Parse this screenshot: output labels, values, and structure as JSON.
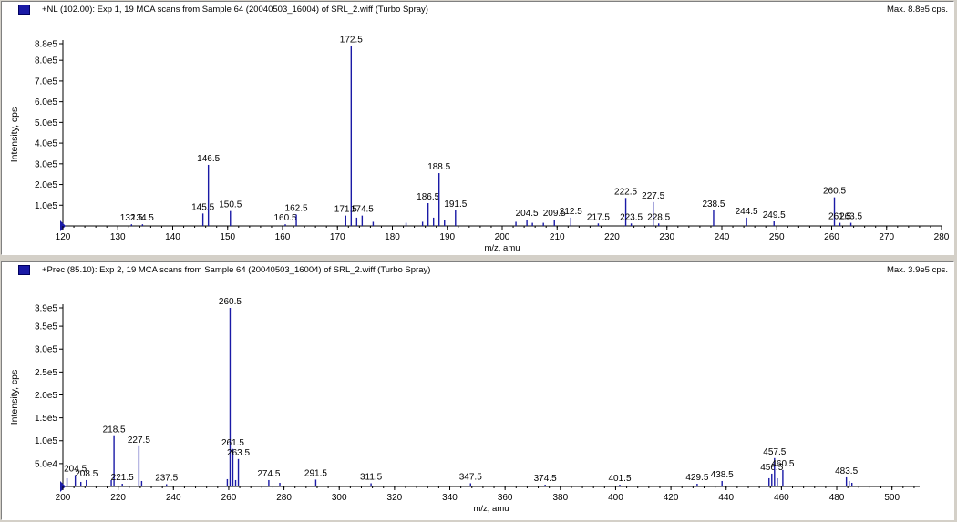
{
  "panels": [
    {
      "title": "+NL (102.00): Exp 1, 19 MCA scans from Sample 64 (20040503_16004) of SRL_2.wiff (Turbo Spray)",
      "max_label": "Max. 8.8e5 cps."
    },
    {
      "title": "+Prec (85.10): Exp 2, 19 MCA scans from Sample 64 (20040503_16004) of SRL_2.wiff (Turbo Spray)",
      "max_label": "Max. 3.9e5 cps."
    }
  ],
  "chart_data": [
    {
      "type": "bar",
      "xlabel": "m/z, amu",
      "ylabel": "Intensity, cps",
      "xlim": [
        120,
        280
      ],
      "ylim": [
        0,
        880000
      ],
      "line_color": "#1a1aa6",
      "x_ticks": [
        {
          "value": 120,
          "label": "120"
        },
        {
          "value": 130,
          "label": "130"
        },
        {
          "value": 140,
          "label": "140"
        },
        {
          "value": 150,
          "label": "150"
        },
        {
          "value": 160,
          "label": "160"
        },
        {
          "value": 170,
          "label": "170"
        },
        {
          "value": 180,
          "label": "180"
        },
        {
          "value": 190,
          "label": "190"
        },
        {
          "value": 200,
          "label": "200"
        },
        {
          "value": 210,
          "label": "210"
        },
        {
          "value": 220,
          "label": "220"
        },
        {
          "value": 230,
          "label": "230"
        },
        {
          "value": 240,
          "label": "240"
        },
        {
          "value": 250,
          "label": "250"
        },
        {
          "value": 260,
          "label": "260"
        },
        {
          "value": 270,
          "label": "270"
        },
        {
          "value": 280,
          "label": "280"
        }
      ],
      "y_ticks": [
        {
          "value": 100000,
          "label": "1.0e5"
        },
        {
          "value": 200000,
          "label": "2.0e5"
        },
        {
          "value": 300000,
          "label": "3.0e5"
        },
        {
          "value": 400000,
          "label": "4.0e5"
        },
        {
          "value": 500000,
          "label": "5.0e5"
        },
        {
          "value": 600000,
          "label": "6.0e5"
        },
        {
          "value": 700000,
          "label": "7.0e5"
        },
        {
          "value": 800000,
          "label": "8.0e5"
        },
        {
          "value": 880000,
          "label": "8.8e5"
        }
      ],
      "peaks": [
        {
          "x": 132.5,
          "y": 8000,
          "label": "132.5"
        },
        {
          "x": 134.5,
          "y": 8000,
          "label": "134.5"
        },
        {
          "x": 145.5,
          "y": 60000,
          "label": "145.5"
        },
        {
          "x": 146.5,
          "y": 295000,
          "label": "146.5"
        },
        {
          "x": 150.5,
          "y": 72000,
          "label": "150.5"
        },
        {
          "x": 160.5,
          "y": 8000,
          "label": "160.5"
        },
        {
          "x": 162.5,
          "y": 55000,
          "label": "162.5"
        },
        {
          "x": 171.5,
          "y": 50000,
          "label": "171.5"
        },
        {
          "x": 172.5,
          "y": 870000,
          "label": "172.5"
        },
        {
          "x": 173.5,
          "y": 40000,
          "label": ""
        },
        {
          "x": 174.5,
          "y": 50000,
          "label": "174.5"
        },
        {
          "x": 176.5,
          "y": 20000,
          "label": ""
        },
        {
          "x": 182.5,
          "y": 15000,
          "label": ""
        },
        {
          "x": 185.5,
          "y": 20000,
          "label": ""
        },
        {
          "x": 186.5,
          "y": 110000,
          "label": "186.5"
        },
        {
          "x": 187.5,
          "y": 40000,
          "label": ""
        },
        {
          "x": 188.5,
          "y": 255000,
          "label": "188.5"
        },
        {
          "x": 189.5,
          "y": 30000,
          "label": ""
        },
        {
          "x": 191.5,
          "y": 75000,
          "label": "191.5"
        },
        {
          "x": 202.5,
          "y": 20000,
          "label": ""
        },
        {
          "x": 204.5,
          "y": 30000,
          "label": "204.5"
        },
        {
          "x": 205.5,
          "y": 15000,
          "label": ""
        },
        {
          "x": 207.5,
          "y": 15000,
          "label": ""
        },
        {
          "x": 209.5,
          "y": 30000,
          "label": "209.5"
        },
        {
          "x": 212.5,
          "y": 40000,
          "label": "212.5"
        },
        {
          "x": 217.5,
          "y": 12000,
          "label": "217.5"
        },
        {
          "x": 222.5,
          "y": 135000,
          "label": "222.5"
        },
        {
          "x": 223.5,
          "y": 12000,
          "label": "223.5"
        },
        {
          "x": 227.5,
          "y": 115000,
          "label": "227.5"
        },
        {
          "x": 228.5,
          "y": 12000,
          "label": "228.5"
        },
        {
          "x": 238.5,
          "y": 75000,
          "label": "238.5"
        },
        {
          "x": 244.5,
          "y": 40000,
          "label": "244.5"
        },
        {
          "x": 249.5,
          "y": 22000,
          "label": "249.5"
        },
        {
          "x": 260.5,
          "y": 138000,
          "label": "260.5"
        },
        {
          "x": 261.5,
          "y": 15000,
          "label": "261.5"
        },
        {
          "x": 263.5,
          "y": 15000,
          "label": "263.5"
        }
      ]
    },
    {
      "type": "bar",
      "xlabel": "m/z, amu",
      "ylabel": "Intensity, cps",
      "xlim": [
        200,
        510
      ],
      "ylim": [
        0,
        390000
      ],
      "line_color": "#1a1aa6",
      "x_ticks": [
        {
          "value": 200,
          "label": "200"
        },
        {
          "value": 220,
          "label": "220"
        },
        {
          "value": 240,
          "label": "240"
        },
        {
          "value": 260,
          "label": "260"
        },
        {
          "value": 280,
          "label": "280"
        },
        {
          "value": 300,
          "label": "300"
        },
        {
          "value": 320,
          "label": "320"
        },
        {
          "value": 340,
          "label": "340"
        },
        {
          "value": 360,
          "label": "360"
        },
        {
          "value": 380,
          "label": "380"
        },
        {
          "value": 400,
          "label": "400"
        },
        {
          "value": 420,
          "label": "420"
        },
        {
          "value": 440,
          "label": "440"
        },
        {
          "value": 460,
          "label": "460"
        },
        {
          "value": 480,
          "label": "480"
        },
        {
          "value": 500,
          "label": "500"
        }
      ],
      "y_ticks": [
        {
          "value": 50000,
          "label": "5.0e4"
        },
        {
          "value": 100000,
          "label": "1.0e5"
        },
        {
          "value": 150000,
          "label": "1.5e5"
        },
        {
          "value": 200000,
          "label": "2.0e5"
        },
        {
          "value": 250000,
          "label": "2.5e5"
        },
        {
          "value": 300000,
          "label": "3.0e5"
        },
        {
          "value": 350000,
          "label": "3.5e5"
        },
        {
          "value": 390000,
          "label": "3.9e5"
        }
      ],
      "peaks": [
        {
          "x": 201.5,
          "y": 18000,
          "label": ""
        },
        {
          "x": 204.5,
          "y": 25000,
          "label": "204.5"
        },
        {
          "x": 206.5,
          "y": 10000,
          "label": ""
        },
        {
          "x": 208.5,
          "y": 14000,
          "label": "208.5"
        },
        {
          "x": 217.5,
          "y": 14000,
          "label": ""
        },
        {
          "x": 218.5,
          "y": 110000,
          "label": "218.5"
        },
        {
          "x": 221.5,
          "y": 6000,
          "label": "221.5"
        },
        {
          "x": 227.5,
          "y": 88000,
          "label": "227.5"
        },
        {
          "x": 228.5,
          "y": 12000,
          "label": ""
        },
        {
          "x": 237.5,
          "y": 5000,
          "label": "237.5"
        },
        {
          "x": 259.5,
          "y": 16000,
          "label": ""
        },
        {
          "x": 260.5,
          "y": 390000,
          "label": "260.5"
        },
        {
          "x": 261.5,
          "y": 82000,
          "label": "261.5"
        },
        {
          "x": 262.5,
          "y": 14000,
          "label": ""
        },
        {
          "x": 263.5,
          "y": 60000,
          "label": "263.5"
        },
        {
          "x": 274.5,
          "y": 14000,
          "label": "274.5"
        },
        {
          "x": 278.5,
          "y": 8000,
          "label": ""
        },
        {
          "x": 291.5,
          "y": 15000,
          "label": "291.5"
        },
        {
          "x": 311.5,
          "y": 7000,
          "label": "311.5"
        },
        {
          "x": 347.5,
          "y": 7000,
          "label": "347.5"
        },
        {
          "x": 374.5,
          "y": 4000,
          "label": "374.5"
        },
        {
          "x": 401.5,
          "y": 4000,
          "label": "401.5"
        },
        {
          "x": 429.5,
          "y": 6000,
          "label": "429.5"
        },
        {
          "x": 438.5,
          "y": 12000,
          "label": "438.5"
        },
        {
          "x": 455.5,
          "y": 18000,
          "label": ""
        },
        {
          "x": 456.5,
          "y": 28000,
          "label": "456.5"
        },
        {
          "x": 457.5,
          "y": 62000,
          "label": "457.5"
        },
        {
          "x": 458.5,
          "y": 18000,
          "label": ""
        },
        {
          "x": 460.5,
          "y": 36000,
          "label": "460.5"
        },
        {
          "x": 483.5,
          "y": 20000,
          "label": "483.5"
        },
        {
          "x": 484.5,
          "y": 12000,
          "label": ""
        },
        {
          "x": 485.5,
          "y": 8000,
          "label": ""
        }
      ]
    }
  ]
}
